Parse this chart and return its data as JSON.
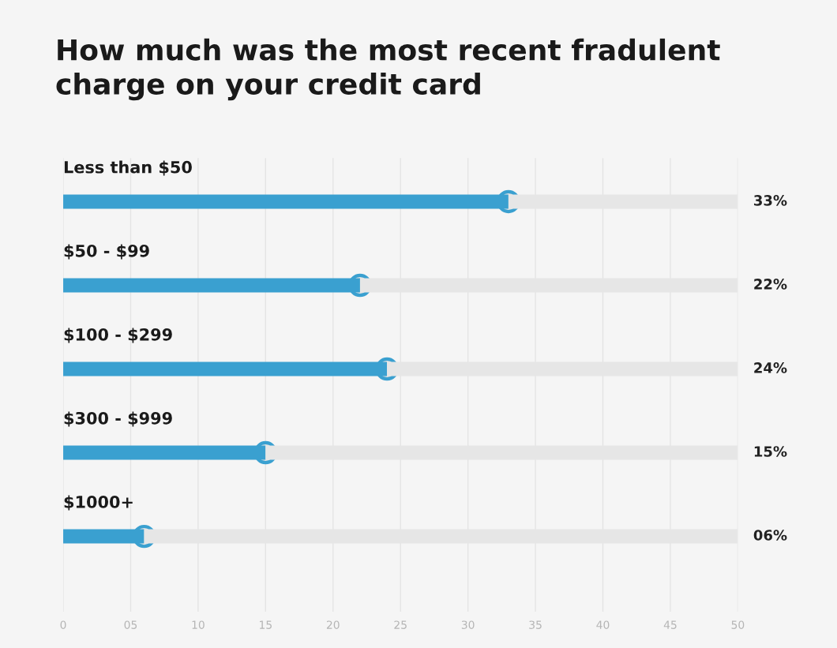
{
  "chart_data": {
    "type": "bar",
    "orientation": "horizontal",
    "stacked": true,
    "title": "How much was the most recent fradulent\ncharge on your credit card",
    "categories": [
      "Less than $50",
      "$50 - $99",
      "$100 - $299",
      "$300 - $999",
      "$1000+"
    ],
    "series": [
      {
        "color": "#3aa0d0",
        "values": [
          33,
          22,
          24,
          15,
          6
        ],
        "value_labels": [
          "33%",
          "22%",
          "24%",
          "15%",
          "06%"
        ],
        "marker": "circle"
      },
      {
        "color": "#e6e6e6",
        "values": [
          17,
          28,
          26,
          35,
          44
        ]
      }
    ],
    "xlim": [
      0,
      50
    ],
    "xticks": [
      0,
      {
        "value": 5,
        "label": "05"
      },
      10,
      15,
      20,
      25,
      30,
      35,
      40,
      45,
      50
    ],
    "grid": "x"
  }
}
